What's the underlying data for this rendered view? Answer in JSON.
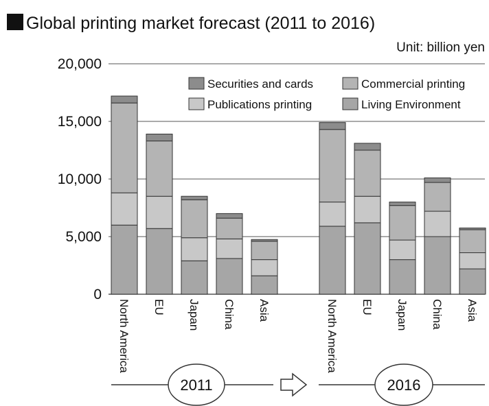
{
  "title": "Global printing market forecast (2011 to 2016)",
  "unit": "Unit: billion yen",
  "colors": {
    "securities_and_cards": "#8c8c8c",
    "commercial_printing": "#b4b4b4",
    "publications_printing": "#c8c8c8",
    "living_environment": "#a6a6a6",
    "outline": "#333333",
    "grid": "#555555"
  },
  "chart_data": {
    "type": "bar",
    "stacked": true,
    "title": "Global printing market forecast (2011 to 2016)",
    "unit": "Unit: billion yen",
    "ylim": [
      0,
      20000
    ],
    "yticks": [
      "20,000",
      "15,000",
      "10,000",
      "5,000",
      "0"
    ],
    "categories": [
      "North America",
      "EU",
      "Japan",
      "China",
      "Asia"
    ],
    "groups": [
      {
        "label": "2011",
        "series": [
          {
            "name": "Living Environment",
            "values": [
              6000,
              5700,
              2900,
              3100,
              1600
            ]
          },
          {
            "name": "Publications printing",
            "values": [
              2800,
              2800,
              2000,
              1700,
              1400
            ]
          },
          {
            "name": "Commercial printing",
            "values": [
              7800,
              4800,
              3300,
              1800,
              1600
            ]
          },
          {
            "name": "Securities and cards",
            "values": [
              600,
              600,
              300,
              400,
              150
            ]
          }
        ]
      },
      {
        "label": "2016",
        "series": [
          {
            "name": "Living Environment",
            "values": [
              5900,
              6200,
              3000,
              5000,
              2200
            ]
          },
          {
            "name": "Publications printing",
            "values": [
              2100,
              2300,
              1700,
              2200,
              1400
            ]
          },
          {
            "name": "Commercial printing",
            "values": [
              6300,
              4000,
              3000,
              2500,
              2000
            ]
          },
          {
            "name": "Securities and cards",
            "values": [
              600,
              600,
              300,
              400,
              150
            ]
          }
        ]
      }
    ],
    "legend": {
      "placement": "top-right",
      "items": [
        "Securities and cards",
        "Commercial printing",
        "Publications printing",
        "Living Environment"
      ]
    },
    "grid": true
  }
}
